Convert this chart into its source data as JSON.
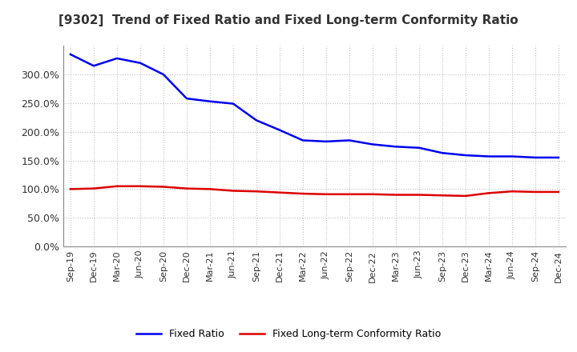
{
  "title": "[9302]  Trend of Fixed Ratio and Fixed Long-term Conformity Ratio",
  "labels": [
    "Sep-19",
    "Dec-19",
    "Mar-20",
    "Jun-20",
    "Sep-20",
    "Dec-20",
    "Mar-21",
    "Jun-21",
    "Sep-21",
    "Dec-21",
    "Mar-22",
    "Jun-22",
    "Sep-22",
    "Dec-22",
    "Mar-23",
    "Jun-23",
    "Sep-23",
    "Dec-23",
    "Mar-24",
    "Jun-24",
    "Sep-24",
    "Dec-24"
  ],
  "fixed_ratio": [
    335,
    315,
    328,
    320,
    300,
    258,
    253,
    249,
    220,
    203,
    185,
    183,
    185,
    178,
    174,
    172,
    163,
    159,
    157,
    157,
    155,
    155
  ],
  "fixed_lt_ratio": [
    100,
    101,
    105,
    105,
    104,
    101,
    100,
    97,
    96,
    94,
    92,
    91,
    91,
    91,
    90,
    90,
    89,
    88,
    93,
    96,
    95,
    95
  ],
  "ylim": [
    0,
    350
  ],
  "yticks": [
    0,
    50,
    100,
    150,
    200,
    250,
    300
  ],
  "line_color_fixed": "#0000EE",
  "line_color_lt": "#DD0000",
  "grid_color": "#BBBBBB",
  "bg_color": "#FFFFFF",
  "title_fontsize": 11,
  "title_color": "#333333",
  "tick_fontsize": 8,
  "ytick_fontsize": 9,
  "legend_fixed": "Fixed Ratio",
  "legend_lt": "Fixed Long-term Conformity Ratio",
  "legend_fontsize": 9
}
